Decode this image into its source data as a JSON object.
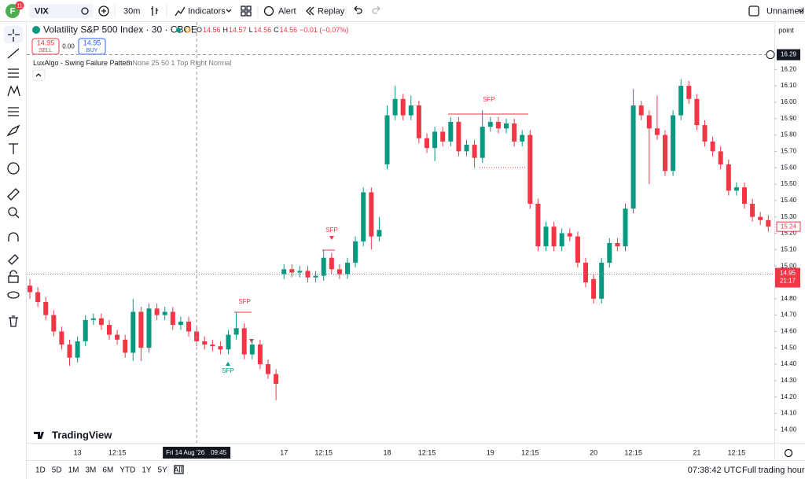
{
  "toolbar": {
    "avatar": "F",
    "badge": "11",
    "symbol": "VIX",
    "interval": "30m",
    "indicators": "Indicators",
    "alert": "Alert",
    "replay": "Replay",
    "layout_name": "Unnamed"
  },
  "legend": {
    "title": "Volatility S&P 500 Index · 30 · CBOE",
    "ohlc": [
      {
        "label": "O",
        "value": "14.56"
      },
      {
        "label": "H",
        "value": "14.57"
      },
      {
        "label": "L",
        "value": "14.56"
      },
      {
        "label": "C",
        "value": "14.56"
      }
    ],
    "change": "−0.01 (−0.07%)",
    "sell_price": "14.95",
    "sell": "SELL",
    "spread": "0.00",
    "buy_price": "14.95",
    "buy": "BUY",
    "indicator_name": "LuxAlgo - Swing Failure Pattern",
    "indicator_params": "5 None 25 50 1 Top Right Normal"
  },
  "chart_data": {
    "type": "candlestick",
    "categories": [
      null,
      null,
      null,
      null,
      null,
      null,
      "13",
      null,
      null,
      null,
      null,
      "12:15",
      null,
      null,
      null,
      null,
      null,
      null,
      null,
      null,
      null,
      null,
      null,
      null,
      null,
      null,
      null,
      null,
      null,
      null,
      null,
      null,
      "17",
      null,
      null,
      null,
      null,
      "12:15",
      null,
      null,
      null,
      null,
      null,
      null,
      null,
      "18",
      null,
      null,
      null,
      null,
      "12:15",
      null,
      null,
      null,
      null,
      null,
      null,
      null,
      "19",
      null,
      null,
      null,
      null,
      "12:15",
      null,
      null,
      null,
      null,
      null,
      null,
      null,
      "20",
      null,
      null,
      null,
      null,
      "12:15",
      null,
      null,
      null,
      null,
      null,
      null,
      null,
      "21",
      null,
      null,
      null,
      null,
      "12:15",
      null,
      null,
      null,
      null
    ],
    "open": [
      14.88,
      14.84,
      14.78,
      14.7,
      14.6,
      14.52,
      14.44,
      14.54,
      14.67,
      14.68,
      14.64,
      14.58,
      14.55,
      14.47,
      14.72,
      14.5,
      14.74,
      14.7,
      14.72,
      14.64,
      14.66,
      14.6,
      14.54,
      14.52,
      14.51,
      14.49,
      14.58,
      14.62,
      14.46,
      14.52,
      14.4,
      14.34,
      14.95,
      14.98,
      14.96,
      14.97,
      14.93,
      14.94,
      15.05,
      14.98,
      14.95,
      15.02,
      15.15,
      15.45,
      15.18,
      15.62,
      15.92,
      16.02,
      15.92,
      15.98,
      15.78,
      15.72,
      15.82,
      15.76,
      15.88,
      15.7,
      15.74,
      15.66,
      15.85,
      15.88,
      15.84,
      15.87,
      15.76,
      15.8,
      15.38,
      15.12,
      15.24,
      15.12,
      15.2,
      15.18,
      15.02,
      14.92,
      14.8,
      15.02,
      15.14,
      15.12,
      15.35,
      15.98,
      15.92,
      15.84,
      15.8,
      15.58,
      15.92,
      16.1,
      16.02,
      15.86,
      15.76,
      15.7,
      15.62,
      15.46,
      15.48,
      15.38,
      15.3,
      15.28
    ],
    "high": [
      14.92,
      14.87,
      14.81,
      14.73,
      14.63,
      14.55,
      14.57,
      14.7,
      14.71,
      14.71,
      14.67,
      14.61,
      14.58,
      14.8,
      14.75,
      14.77,
      14.77,
      14.75,
      14.75,
      14.69,
      14.69,
      14.63,
      14.57,
      14.55,
      14.54,
      14.61,
      14.72,
      14.65,
      14.55,
      14.55,
      14.43,
      14.37,
      15.01,
      15.01,
      15.0,
      15.0,
      14.97,
      15.1,
      15.08,
      15.01,
      15.05,
      15.18,
      15.48,
      15.48,
      15.3,
      15.98,
      16.1,
      16.05,
      16.04,
      16.01,
      15.81,
      15.85,
      15.85,
      15.91,
      15.91,
      15.77,
      15.77,
      15.95,
      15.91,
      15.91,
      15.9,
      15.9,
      15.83,
      15.83,
      15.41,
      15.27,
      15.27,
      15.23,
      15.23,
      15.21,
      15.05,
      14.95,
      15.05,
      15.17,
      15.17,
      15.38,
      16.08,
      16.01,
      15.95,
      16.04,
      15.83,
      15.95,
      16.14,
      16.13,
      16.05,
      15.89,
      15.79,
      15.73,
      15.65,
      15.51,
      15.51,
      15.41,
      15.33,
      15.31
    ],
    "low": [
      14.8,
      14.75,
      14.67,
      14.57,
      14.49,
      14.39,
      14.41,
      14.51,
      14.64,
      14.61,
      14.55,
      14.52,
      14.44,
      14.42,
      14.42,
      14.47,
      14.67,
      14.67,
      14.61,
      14.61,
      14.57,
      14.51,
      14.49,
      14.48,
      14.46,
      14.46,
      14.55,
      14.43,
      14.43,
      14.37,
      14.31,
      14.18,
      14.92,
      14.93,
      14.93,
      14.9,
      14.9,
      14.91,
      14.95,
      14.92,
      14.92,
      14.99,
      15.12,
      15.1,
      15.15,
      15.59,
      15.89,
      15.89,
      15.89,
      15.75,
      15.69,
      15.64,
      15.73,
      15.73,
      15.67,
      15.67,
      15.6,
      15.63,
      15.82,
      15.81,
      15.81,
      15.73,
      15.73,
      15.35,
      15.09,
      15.09,
      15.09,
      15.09,
      15.15,
      14.99,
      14.87,
      14.77,
      14.77,
      14.99,
      15.09,
      15.09,
      15.32,
      15.89,
      15.5,
      15.77,
      15.55,
      15.55,
      15.89,
      15.99,
      15.83,
      15.73,
      15.67,
      15.59,
      15.43,
      15.43,
      15.35,
      15.27,
      15.25,
      15.21
    ],
    "close": [
      14.84,
      14.78,
      14.7,
      14.6,
      14.52,
      14.44,
      14.54,
      14.67,
      14.68,
      14.64,
      14.58,
      14.55,
      14.47,
      14.72,
      14.5,
      14.74,
      14.7,
      14.72,
      14.64,
      14.66,
      14.6,
      14.54,
      14.52,
      14.51,
      14.49,
      14.58,
      14.62,
      14.46,
      14.52,
      14.4,
      14.34,
      14.28,
      14.98,
      14.96,
      14.97,
      14.93,
      14.94,
      15.05,
      14.98,
      14.95,
      15.02,
      15.15,
      15.45,
      15.18,
      15.22,
      15.92,
      16.02,
      15.92,
      15.98,
      15.78,
      15.72,
      15.82,
      15.76,
      15.88,
      15.7,
      15.74,
      15.66,
      15.85,
      15.88,
      15.84,
      15.87,
      15.76,
      15.8,
      15.38,
      15.12,
      15.24,
      15.12,
      15.2,
      15.18,
      15.02,
      14.9,
      14.8,
      15.02,
      15.14,
      15.12,
      15.35,
      15.98,
      15.92,
      15.84,
      15.8,
      15.58,
      15.92,
      16.1,
      16.02,
      15.86,
      15.76,
      15.7,
      15.62,
      15.46,
      15.48,
      15.38,
      15.3,
      15.28,
      15.24
    ],
    "up_color": "#089981",
    "down_color": "#f23645",
    "ylim": [
      13.92,
      16.48
    ],
    "yticks": [
      {
        "value": 14.0,
        "label": "14.00"
      },
      {
        "value": 14.1,
        "label": "14.10"
      },
      {
        "value": 14.2,
        "label": "14.20"
      },
      {
        "value": 14.3,
        "label": "14.30"
      },
      {
        "value": 14.4,
        "label": "14.40"
      },
      {
        "value": 14.5,
        "label": "14.50"
      },
      {
        "value": 14.6,
        "label": "14.60"
      },
      {
        "value": 14.7,
        "label": "14.70"
      },
      {
        "value": 14.8,
        "label": "14.80"
      },
      {
        "value": 14.9,
        "label": "14.90"
      },
      {
        "value": 15.0,
        "label": "15.00"
      },
      {
        "value": 15.1,
        "label": "15.10"
      },
      {
        "value": 15.2,
        "label": "15.20"
      },
      {
        "value": 15.3,
        "label": "15.30"
      },
      {
        "value": 15.4,
        "label": "15.40"
      },
      {
        "value": 15.5,
        "label": "15.50"
      },
      {
        "value": 15.6,
        "label": "15.60"
      },
      {
        "value": 15.7,
        "label": "15.70"
      },
      {
        "value": 15.8,
        "label": "15.80"
      },
      {
        "value": 15.9,
        "label": "15.90"
      },
      {
        "value": 16.0,
        "label": "16.00"
      },
      {
        "value": 16.1,
        "label": "16.10"
      },
      {
        "value": 16.2,
        "label": "16.20"
      }
    ],
    "price_scale_unit": "point",
    "crosshair": {
      "date_label": "Fri 14 Aug '26",
      "time_label": "09:45",
      "price": {
        "value": 16.29,
        "label": "16.29"
      }
    },
    "last_price": {
      "value": 15.24,
      "label": "15.24"
    },
    "current_price": {
      "value": 14.95,
      "label": "14.95"
    },
    "countdown": "21:17",
    "annotations": [
      "SFP",
      "SFP",
      "SFP",
      "SFP"
    ]
  },
  "watermark": "TradingView",
  "bottom_bar": {
    "ranges": [
      "1D",
      "5D",
      "1M",
      "3M",
      "6M",
      "YTD",
      "1Y",
      "5Y",
      "All"
    ],
    "clock": "07:38:42 UTC",
    "session": "Full trading hours"
  }
}
